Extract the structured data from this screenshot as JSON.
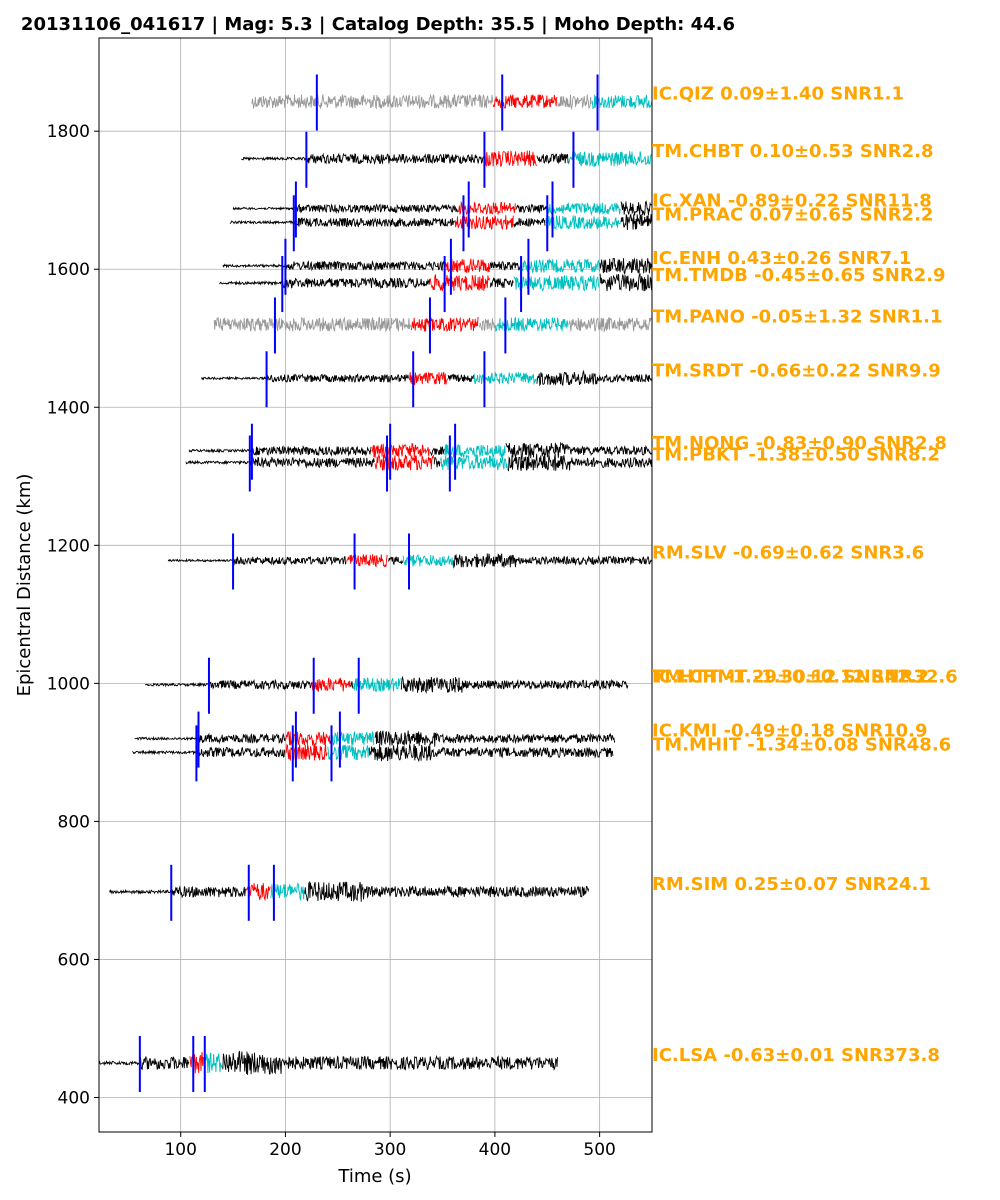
{
  "chart_data": {
    "type": "line",
    "title": "20131106_041617 | Mag: 5.3 | Catalog Depth: 35.5 | Moho Depth: 44.6",
    "xlabel": "Time (s)",
    "ylabel": "Epicentral Distance (km)",
    "xlim": [
      22,
      550
    ],
    "ylim": [
      350,
      1935
    ],
    "xticks": [
      100,
      200,
      300,
      400,
      500
    ],
    "yticks": [
      400,
      600,
      800,
      1000,
      1200,
      1400,
      1600,
      1800
    ],
    "grid": true,
    "label_color": "#FFA500",
    "segment_colors": {
      "pre": "#000000",
      "p_window": "#FF0000",
      "s_window": "#00BFBF",
      "post": "#000000",
      "low_snr": "#999999",
      "pick": "#0000FF"
    },
    "traces": [
      {
        "label": "IC.QIZ 0.09±1.40 SNR1.1",
        "distance": 1843,
        "start": 168,
        "end": 550,
        "picks": [
          230,
          407,
          498
        ],
        "red": [
          398,
          460
        ],
        "cyan": [
          492,
          550
        ],
        "low_snr": true,
        "amp": 10
      },
      {
        "label": "TM.CHBT 0.10±0.53 SNR2.8",
        "distance": 1760,
        "start": 158,
        "end": 550,
        "picks": [
          220,
          390,
          475
        ],
        "red": [
          390,
          440
        ],
        "cyan": [
          470,
          550
        ],
        "low_snr": false,
        "amp": 9
      },
      {
        "label": "IC.XAN -0.89±0.22 SNR11.8",
        "distance": 1688,
        "start": 150,
        "end": 550,
        "picks": [
          210,
          375,
          455
        ],
        "red": [
          365,
          420
        ],
        "cyan": [
          450,
          520
        ],
        "low_snr": false,
        "amp": 7
      },
      {
        "label": "TM.PRAC 0.07±0.65 SNR2.2",
        "distance": 1668,
        "start": 147,
        "end": 550,
        "picks": [
          208,
          370,
          450
        ],
        "red": [
          362,
          418
        ],
        "cyan": [
          448,
          520
        ],
        "low_snr": false,
        "amp": 8
      },
      {
        "label": "IC.ENH 0.43±0.26 SNR7.1",
        "distance": 1605,
        "start": 140,
        "end": 550,
        "picks": [
          200,
          358,
          432
        ],
        "red": [
          352,
          395
        ],
        "cyan": [
          425,
          500
        ],
        "low_snr": false,
        "amp": 8
      },
      {
        "label": "TM.TMDB -0.45±0.65 SNR2.9",
        "distance": 1580,
        "start": 137,
        "end": 550,
        "picks": [
          197,
          352,
          425
        ],
        "red": [
          338,
          395
        ],
        "cyan": [
          418,
          500
        ],
        "low_snr": false,
        "amp": 9
      },
      {
        "label": "TM.PANO -0.05±1.32 SNR1.1",
        "distance": 1520,
        "start": 132,
        "end": 550,
        "picks": [
          190,
          338,
          410
        ],
        "red": [
          320,
          385
        ],
        "cyan": [
          400,
          470
        ],
        "low_snr": true,
        "amp": 10
      },
      {
        "label": "TM.SRDT -0.66±0.22 SNR9.9",
        "distance": 1442,
        "start": 120,
        "end": 550,
        "picks": [
          182,
          322,
          390
        ],
        "red": [
          318,
          355
        ],
        "cyan": [
          380,
          440
        ],
        "low_snr": false,
        "amp": 7
      },
      {
        "label": "TM.NONG -0.83±0.90 SNR2.8",
        "distance": 1337,
        "start": 108,
        "end": 550,
        "picks": [
          168,
          300,
          362
        ],
        "red": [
          282,
          338
        ],
        "cyan": [
          352,
          410
        ],
        "low_snr": false,
        "amp": 8
      },
      {
        "label": "TM.PBKT -1.38±0.50 SNR8.2",
        "distance": 1320,
        "start": 105,
        "end": 550,
        "picks": [
          166,
          297,
          357
        ],
        "red": [
          285,
          342
        ],
        "cyan": [
          348,
          412
        ],
        "low_snr": false,
        "amp": 9
      },
      {
        "label": "RM.SLV -0.69±0.62 SNR3.6",
        "distance": 1178,
        "start": 88,
        "end": 550,
        "picks": [
          150,
          266,
          318
        ],
        "red": [
          258,
          298
        ],
        "cyan": [
          312,
          360
        ],
        "low_snr": false,
        "amp": 7
      },
      {
        "label": "TM.CHMT -1.30±0.12 SNR32.6",
        "distance": 998,
        "start": 66,
        "end": 527,
        "picks": [
          127,
          227,
          270
        ],
        "red": [
          225,
          262
        ],
        "cyan": [
          265,
          310
        ],
        "low_snr": false,
        "amp": 8
      },
      {
        "label": "IC.KMI -0.49±0.18 SNR10.9",
        "distance": 920,
        "start": 56,
        "end": 515,
        "picks": [
          117,
          210,
          252
        ],
        "red": [
          200,
          245
        ],
        "cyan": [
          245,
          285
        ],
        "low_snr": false,
        "amp": 8
      },
      {
        "label": "TM.MHIT -1.34±0.08 SNR48.6",
        "distance": 900,
        "start": 54,
        "end": 513,
        "picks": [
          115,
          207,
          244
        ],
        "red": [
          200,
          240
        ],
        "cyan": [
          240,
          280
        ],
        "low_snr": false,
        "amp": 9
      },
      {
        "label": "RM.SIM 0.25±0.07 SNR24.1",
        "distance": 698,
        "start": 32,
        "end": 490,
        "picks": [
          91,
          165,
          189
        ],
        "red": [
          162,
          186
        ],
        "cyan": [
          186,
          218
        ],
        "low_snr": false,
        "amp": 10
      },
      {
        "label": "IC.LSA -0.63±0.01 SNR373.8",
        "distance": 450,
        "start": 22,
        "end": 460,
        "picks": [
          61,
          112,
          123
        ],
        "red": [
          108,
          122
        ],
        "cyan": [
          122,
          140
        ],
        "low_snr": false,
        "amp": 12
      }
    ],
    "overlap_label": {
      "label": "IC.HTT -1.29±0.12 SNR42.2",
      "distance": 998
    }
  }
}
